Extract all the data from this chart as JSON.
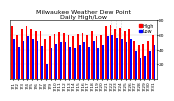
{
  "title": "Milwaukee Weather Dew Point\nDaily High/Low",
  "title_fontsize": 4.5,
  "background_color": "#ffffff",
  "bar_width": 0.38,
  "ylim": [
    0,
    80
  ],
  "yticks": [
    20,
    40,
    60,
    80
  ],
  "categories": [
    "7/1",
    "7/2",
    "7/3",
    "7/4",
    "7/5",
    "7/6",
    "7/7",
    "7/8",
    "7/9",
    "7/10",
    "7/11",
    "7/12",
    "7/13",
    "7/14",
    "7/15",
    "7/16",
    "7/17",
    "7/18",
    "7/19",
    "7/20",
    "7/21",
    "7/22",
    "7/23",
    "7/24",
    "7/25",
    "7/26",
    "7/27",
    "7/28",
    "7/29",
    "7/30",
    "7/31"
  ],
  "high_values": [
    72,
    60,
    68,
    72,
    68,
    65,
    66,
    55,
    58,
    62,
    64,
    63,
    60,
    58,
    62,
    63,
    60,
    65,
    58,
    60,
    72,
    74,
    68,
    70,
    65,
    68,
    52,
    46,
    48,
    52,
    60
  ],
  "low_values": [
    55,
    44,
    52,
    58,
    55,
    52,
    45,
    20,
    42,
    48,
    50,
    50,
    44,
    42,
    46,
    50,
    44,
    52,
    42,
    46,
    58,
    60,
    56,
    55,
    50,
    55,
    38,
    28,
    32,
    38,
    46
  ],
  "high_color": "#ff0000",
  "low_color": "#0000ff",
  "legend_high": "High",
  "legend_low": "Low",
  "tick_fontsize": 3.2,
  "legend_fontsize": 3.5,
  "dotted_bar_indices": [
    21,
    22,
    23
  ]
}
